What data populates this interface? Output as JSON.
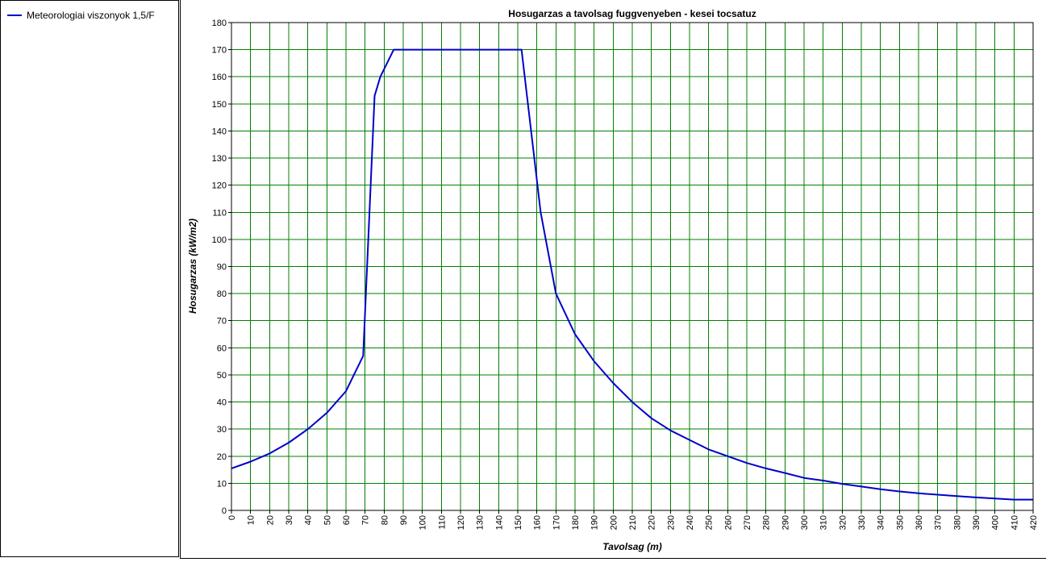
{
  "legend": {
    "items": [
      {
        "label": "Meteorologiai viszonyok 1,5/F",
        "color": "#0000cc"
      }
    ]
  },
  "chart_data": {
    "type": "line",
    "title": "Hosugarzas a tavolsag fuggvenyeben - kesei tocsatuz",
    "xlabel": "Tavolsag (m)",
    "ylabel": "Hosugarzas (kW/m2)",
    "xlim": [
      0,
      420
    ],
    "ylim": [
      0,
      180
    ],
    "x_ticks": [
      0,
      10,
      20,
      30,
      40,
      50,
      60,
      70,
      80,
      90,
      100,
      110,
      120,
      130,
      140,
      150,
      160,
      170,
      180,
      190,
      200,
      210,
      220,
      230,
      240,
      250,
      260,
      270,
      280,
      290,
      300,
      310,
      320,
      330,
      340,
      350,
      360,
      370,
      380,
      390,
      400,
      410,
      420
    ],
    "y_ticks": [
      0,
      10,
      20,
      30,
      40,
      50,
      60,
      70,
      80,
      90,
      100,
      110,
      120,
      130,
      140,
      150,
      160,
      170,
      180
    ],
    "grid": true,
    "grid_color": "#008000",
    "legend_position": "left",
    "series": [
      {
        "name": "Meteorologiai viszonyok 1,5/F",
        "color": "#0000cc",
        "x": [
          0,
          10,
          20,
          30,
          40,
          50,
          60,
          69,
          75,
          78,
          85,
          100,
          120,
          140,
          152,
          162,
          170,
          180,
          190,
          200,
          210,
          220,
          230,
          240,
          250,
          260,
          270,
          280,
          290,
          300,
          310,
          320,
          330,
          340,
          350,
          360,
          370,
          380,
          390,
          400,
          410,
          420
        ],
        "y": [
          15.5,
          18,
          21,
          25,
          30,
          36,
          44,
          57,
          153,
          160,
          170,
          170,
          170,
          170,
          170,
          110,
          80,
          65,
          55,
          47,
          40,
          34,
          29.5,
          26,
          22.5,
          20,
          17.5,
          15.5,
          13.8,
          12,
          11,
          9.8,
          8.8,
          7.8,
          7,
          6.3,
          5.8,
          5.3,
          4.8,
          4.4,
          4,
          4
        ]
      }
    ]
  }
}
